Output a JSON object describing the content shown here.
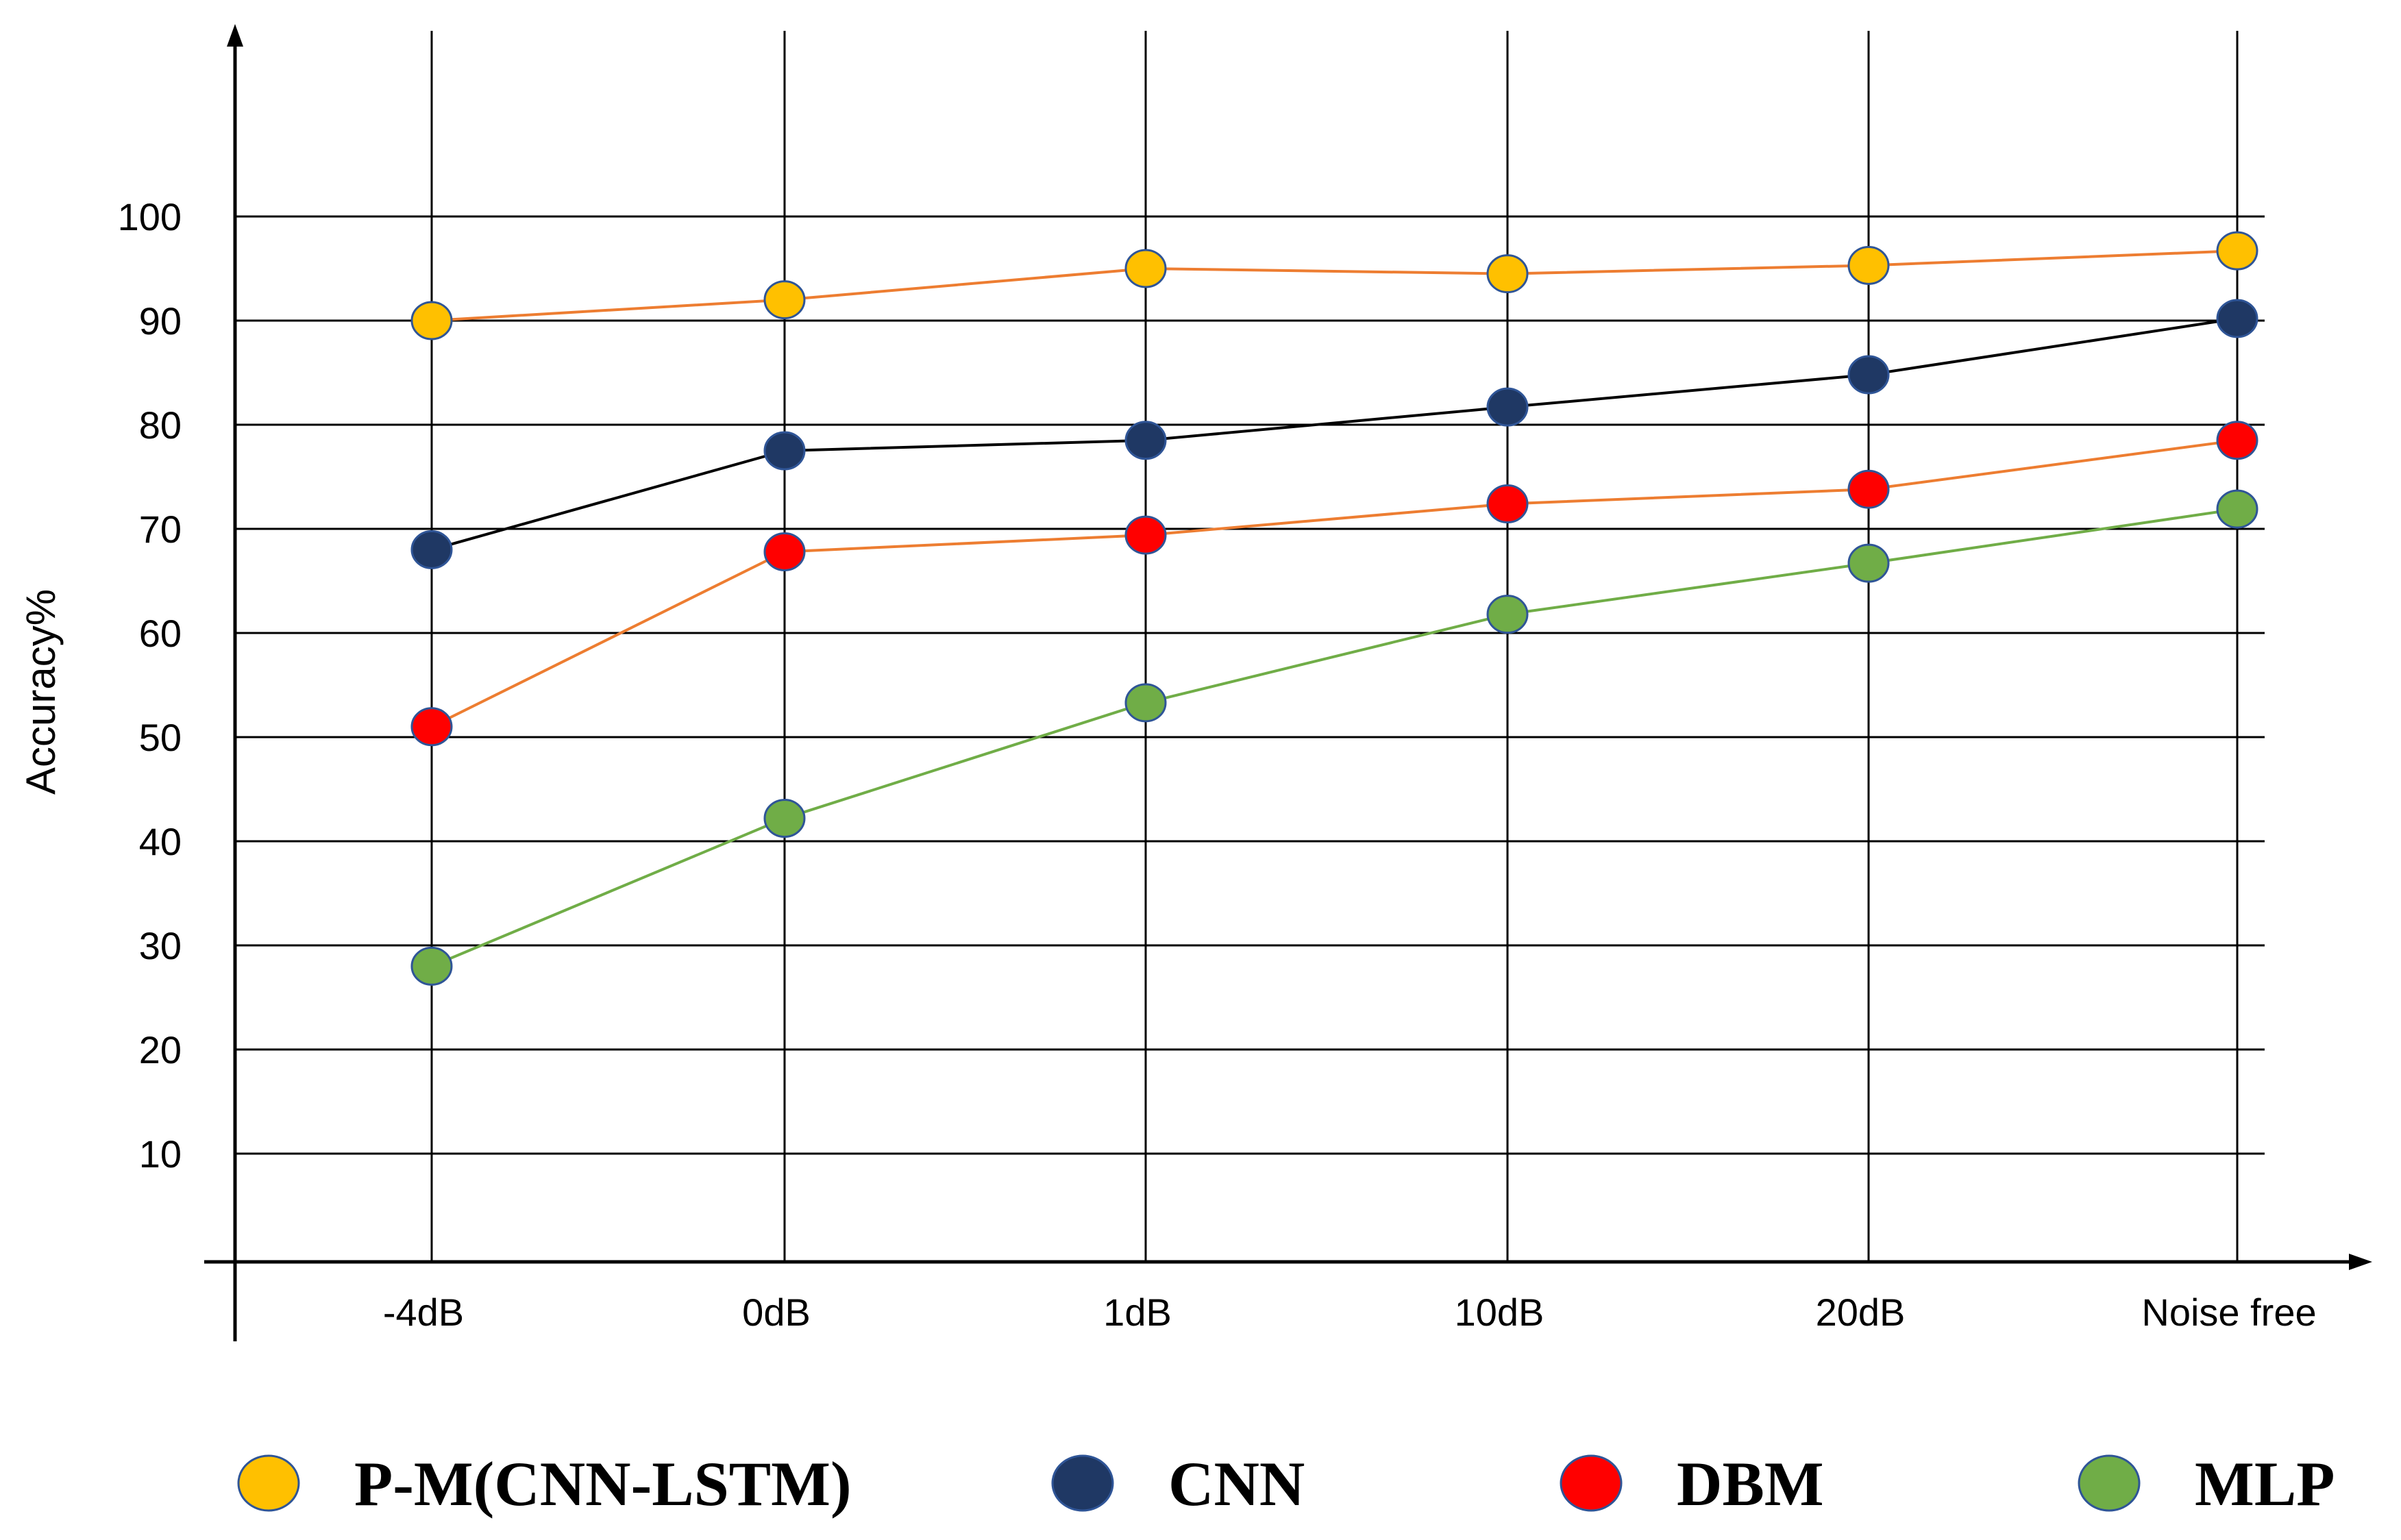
{
  "chart_data": {
    "type": "line",
    "title": "",
    "xlabel": "",
    "ylabel": "Accuracy%",
    "categories": [
      "-4dB",
      "0dB",
      "1dB",
      "10dB",
      "20dB",
      "Noise free"
    ],
    "yticks": [
      10,
      20,
      30,
      40,
      50,
      60,
      70,
      80,
      90,
      100
    ],
    "ylim": [
      0,
      110
    ],
    "grid": true,
    "legend_position": "bottom",
    "series": [
      {
        "name": "P-M(CNN-LSTM)",
        "values": [
          90,
          92,
          95,
          94.5,
          95.3,
          96.7
        ],
        "marker_color": "#FFC000",
        "line_color": "#ED7D31"
      },
      {
        "name": "CNN",
        "values": [
          68,
          77.5,
          78.5,
          81.7,
          84.8,
          90.2
        ],
        "marker_color": "#1F3864",
        "line_color": "#000000"
      },
      {
        "name": "DBM",
        "values": [
          51,
          67.8,
          69.4,
          72.4,
          73.8,
          78.5
        ],
        "marker_color": "#FF0000",
        "line_color": "#ED7D31"
      },
      {
        "name": "MLP",
        "values": [
          28,
          42.2,
          53.3,
          61.8,
          66.7,
          71.9
        ],
        "marker_color": "#70AD47",
        "line_color": "#70AD47"
      }
    ]
  }
}
